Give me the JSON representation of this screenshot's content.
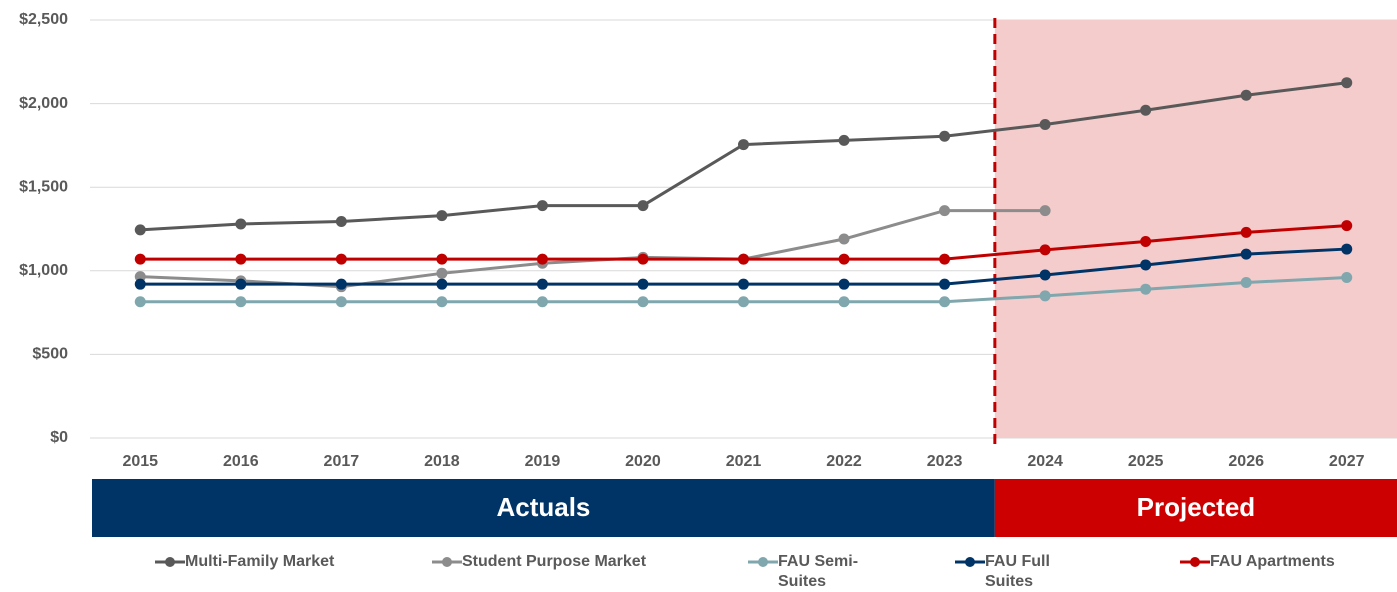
{
  "chart_data": {
    "type": "line",
    "categories": [
      "2015",
      "2016",
      "2017",
      "2018",
      "2019",
      "2020",
      "2021",
      "2022",
      "2023",
      "2024",
      "2025",
      "2026",
      "2027"
    ],
    "series": [
      {
        "name": "Multi-Family Market",
        "color": "#595959",
        "values": [
          1245,
          1280,
          1295,
          1330,
          1390,
          1390,
          1755,
          1780,
          1805,
          1875,
          1960,
          2050,
          2125
        ]
      },
      {
        "name": "Student Purpose Market",
        "color": "#8c8c8c",
        "values": [
          965,
          940,
          905,
          985,
          1045,
          1080,
          1070,
          1190,
          1360,
          1360,
          null,
          null,
          null
        ]
      },
      {
        "name": "FAU Semi-Suites",
        "color": "#7fa7ad",
        "values": [
          815,
          815,
          815,
          815,
          815,
          815,
          815,
          815,
          815,
          850,
          890,
          930,
          960
        ]
      },
      {
        "name": "FAU Full Suites",
        "color": "#003366",
        "values": [
          920,
          920,
          920,
          920,
          920,
          920,
          920,
          920,
          920,
          975,
          1035,
          1100,
          1130
        ]
      },
      {
        "name": "FAU Apartments",
        "color": "#c00000",
        "values": [
          1070,
          1070,
          1070,
          1070,
          1070,
          1070,
          1070,
          1070,
          1070,
          1125,
          1175,
          1230,
          1270
        ]
      }
    ],
    "ylim": [
      0,
      2500
    ],
    "yticks": [
      {
        "value": 0,
        "label": "$0"
      },
      {
        "value": 500,
        "label": "$500"
      },
      {
        "value": 1000,
        "label": "$1,000"
      },
      {
        "value": 1500,
        "label": "$1,500"
      },
      {
        "value": 2000,
        "label": "$2,000"
      },
      {
        "value": 2500,
        "label": "$2,500"
      }
    ],
    "grid": true,
    "annotations": [
      "Actuals",
      "Projected"
    ]
  }
}
